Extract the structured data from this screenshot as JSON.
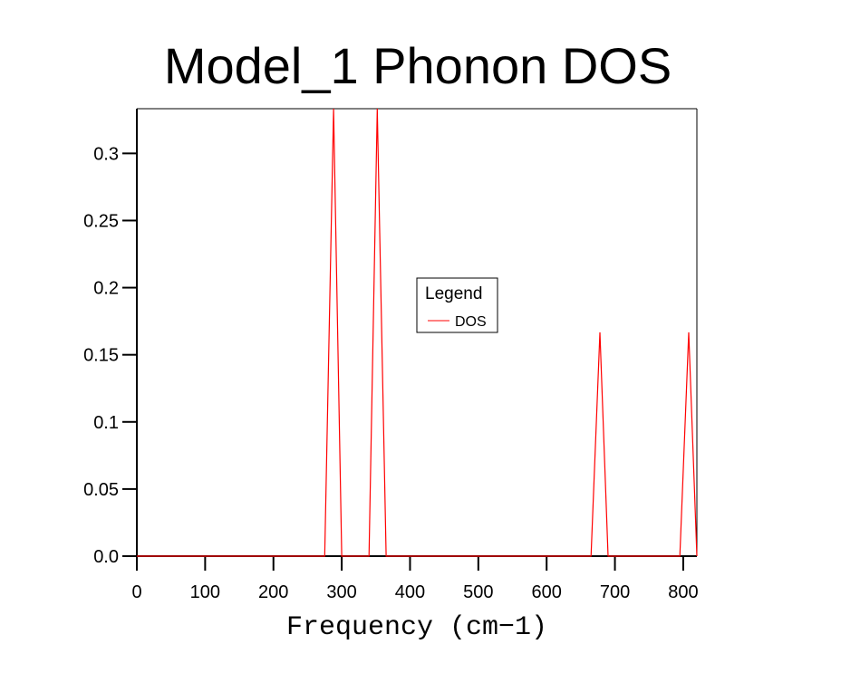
{
  "chart_data": {
    "type": "line",
    "title": "Model_1 Phonon DOS",
    "xlabel": "Frequency (cm−1)",
    "ylabel": "",
    "xlim": [
      0,
      820
    ],
    "ylim": [
      0,
      0.3333
    ],
    "grid": false,
    "x_ticks": [
      0,
      100,
      200,
      300,
      400,
      500,
      600,
      700,
      800
    ],
    "x_tick_labels": [
      "0",
      "100",
      "200",
      "300",
      "400",
      "500",
      "600",
      "700",
      "800"
    ],
    "y_ticks": [
      0,
      0.05,
      0.1,
      0.15,
      0.2,
      0.25,
      0.3
    ],
    "y_tick_labels": [
      "0.0",
      "0.05",
      "0.1",
      "0.15",
      "0.2",
      "0.25",
      "0.3"
    ],
    "legend": {
      "title": "Legend",
      "position": "center-right",
      "entries": [
        "DOS"
      ]
    },
    "series": [
      {
        "name": "DOS",
        "color": "#ff0000",
        "x": [
          0,
          275,
          288,
          300,
          340,
          352,
          365,
          665,
          678,
          690,
          795,
          808,
          820
        ],
        "y": [
          0,
          0,
          0.3333,
          0,
          0,
          0.3333,
          0,
          0,
          0.1667,
          0,
          0,
          0.1667,
          0
        ]
      }
    ]
  }
}
